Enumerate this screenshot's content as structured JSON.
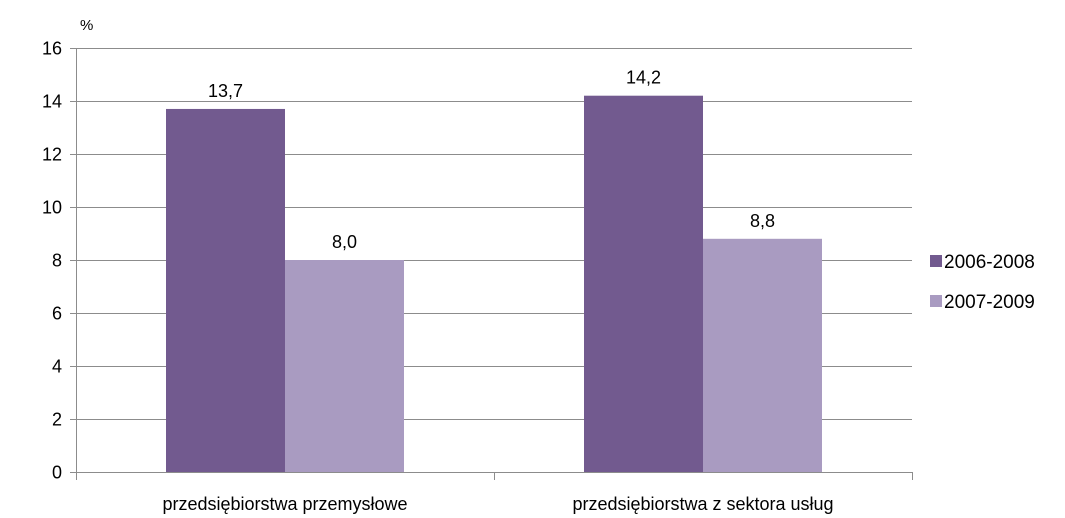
{
  "chart_data": {
    "type": "bar",
    "unit_label": "%",
    "categories": [
      "przedsiębiorstwa przemysłowe",
      "przedsiębiorstwa z sektora usług"
    ],
    "series": [
      {
        "name": "2006-2008",
        "values": [
          13.7,
          14.2
        ],
        "labels": [
          "13,7",
          "14,2"
        ],
        "color": "#725a8f"
      },
      {
        "name": "2007-2009",
        "values": [
          8.0,
          8.8
        ],
        "labels": [
          "8,0",
          "8,8"
        ],
        "color": "#a99bc1"
      }
    ],
    "ylim": [
      0,
      16
    ],
    "yticks": [
      "0",
      "2",
      "4",
      "6",
      "8",
      "10",
      "12",
      "14",
      "16"
    ],
    "grid": true,
    "legend_position": "right",
    "gridline_color": "#8c8c8c"
  }
}
